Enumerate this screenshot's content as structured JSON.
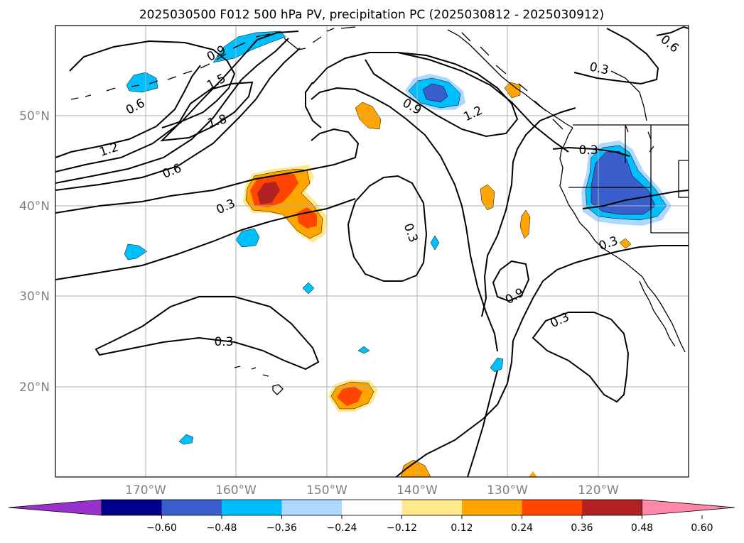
{
  "title": "2025030500 F012 500 hPa PV, precipitation PC (2025030812 - 2025030912)",
  "lat_labels": [
    "50°N",
    "40°N",
    "30°N",
    "20°N"
  ],
  "lon_labels": [
    "170°W",
    "160°W",
    "150°W",
    "140°W",
    "130°W",
    "120°W"
  ],
  "contour_labels": [
    "0.9",
    "1.5",
    "1.8",
    "1.2",
    "0.6",
    "0.6",
    "0.3",
    "0.9",
    "1.2",
    "0.3",
    "0.3",
    "0.9",
    "0.3",
    "0.3",
    "0.3",
    "0.6",
    "0.3"
  ],
  "colorbar": {
    "ticks": [
      "−0.60",
      "−0.48",
      "−0.36",
      "−0.24",
      "−0.12",
      "0.12",
      "0.24",
      "0.36",
      "0.48",
      "0.60"
    ],
    "colors": [
      "#9932cc",
      "#00008b",
      "#3a5fcd",
      "#00bfff",
      "#add8ff",
      "#ffffff",
      "#ffe98a",
      "#ffa500",
      "#ff4500",
      "#b22222",
      "#ff88aa"
    ]
  },
  "colors": {
    "neg_strong": "#3a5fcd",
    "neg_mid": "#00bfff",
    "neg_weak": "#add8ff",
    "pos_weak": "#ffe98a",
    "pos_mid": "#ffa500",
    "pos_strong": "#ff4500",
    "pos_max": "#b22222",
    "grid": "#b0b0b0",
    "contour": "#000000"
  }
}
